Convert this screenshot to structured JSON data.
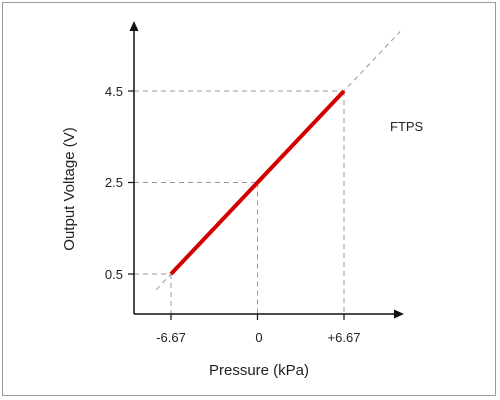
{
  "chart_data": {
    "type": "line",
    "title": "",
    "xlabel": "Pressure (kPa)",
    "ylabel": "Output Voltage (V)",
    "annotation": "FTPS",
    "x_ticks": [
      "-6.67",
      "0",
      "+6.67"
    ],
    "y_ticks": [
      "0.5",
      "2.5",
      "4.5"
    ],
    "xlim": [
      -9.5,
      11.0
    ],
    "ylim": [
      -1.4,
      7.2
    ],
    "grid": false,
    "series": [
      {
        "color": "#d40000",
        "x": [
          -6.67,
          6.67
        ],
        "y": [
          0.5,
          4.5
        ]
      }
    ],
    "reference_line": {
      "style": "dashed",
      "color": "#999999",
      "x": [
        -7.8,
        11.0
      ],
      "y": [
        0.16,
        5.8
      ]
    },
    "guide_lines": [
      {
        "x": -6.67,
        "y": 0.5
      },
      {
        "x": 0,
        "y": 2.5
      },
      {
        "x": 6.67,
        "y": 4.5
      }
    ]
  }
}
